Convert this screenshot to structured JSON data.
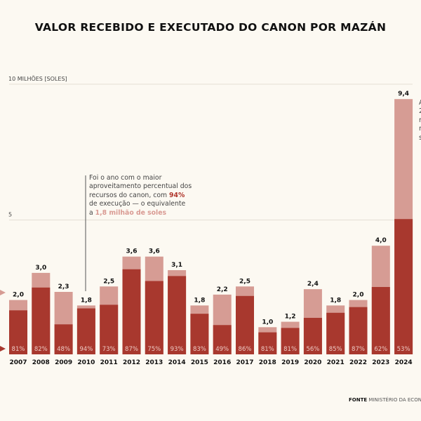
{
  "title": "VALOR RECEBIDO E EXECUTADO DO CANON POR MAZÁN",
  "annotation": {
    "line1": "Foi o ano com o maior",
    "line2": "aproveitamento percentual dos",
    "line3a": "recursos do canon, com ",
    "line3b": "94%",
    "line4": "de execução — o equivalente",
    "line5a": "a ",
    "line5b": "1,8 milhão de soles"
  },
  "right_annotation_visible": [
    "A",
    "2",
    "r",
    "r",
    "s"
  ],
  "source": {
    "label": "FONTE",
    "text": "MINISTÉRIO DA ECONOMIA"
  },
  "colors": {
    "received": "#d69c94",
    "executed": "#a8382e",
    "background": "#fcf9f2"
  },
  "chart_data": {
    "type": "bar",
    "stacked": "overlay",
    "title": "VALOR RECEBIDO E EXECUTADO DO CANON POR MAZÁN",
    "ylabel": "MILHÕES [SOLES]",
    "ylim": [
      0,
      10
    ],
    "yticks": [
      5,
      10
    ],
    "grid": true,
    "categories": [
      "2007",
      "2008",
      "2009",
      "2010",
      "2011",
      "2012",
      "2013",
      "2014",
      "2015",
      "2016",
      "2017",
      "2018",
      "2019",
      "2020",
      "2021",
      "2022",
      "2023",
      "2024"
    ],
    "received_labels": [
      "2,0",
      "3,0",
      "2,3",
      "1,8",
      "2,5",
      "3,6",
      "3,6",
      "3,1",
      "1,8",
      "2,2",
      "2,5",
      "1,0",
      "1,2",
      "2,4",
      "1,8",
      "2,0",
      "4,0",
      "9,4"
    ],
    "received": [
      2.0,
      3.0,
      2.3,
      1.8,
      2.5,
      3.6,
      3.6,
      3.1,
      1.8,
      2.2,
      2.5,
      1.0,
      1.2,
      2.4,
      1.8,
      2.0,
      4.0,
      9.4
    ],
    "execution_pct_labels": [
      "81%",
      "82%",
      "48%",
      "94%",
      "73%",
      "87%",
      "75%",
      "93%",
      "83%",
      "49%",
      "86%",
      "81%",
      "81%",
      "56%",
      "85%",
      "87%",
      "62%",
      "53%"
    ],
    "execution_pct": [
      81,
      82,
      48,
      94,
      73,
      87,
      75,
      93,
      83,
      49,
      86,
      81,
      81,
      56,
      85,
      87,
      62,
      53
    ]
  }
}
